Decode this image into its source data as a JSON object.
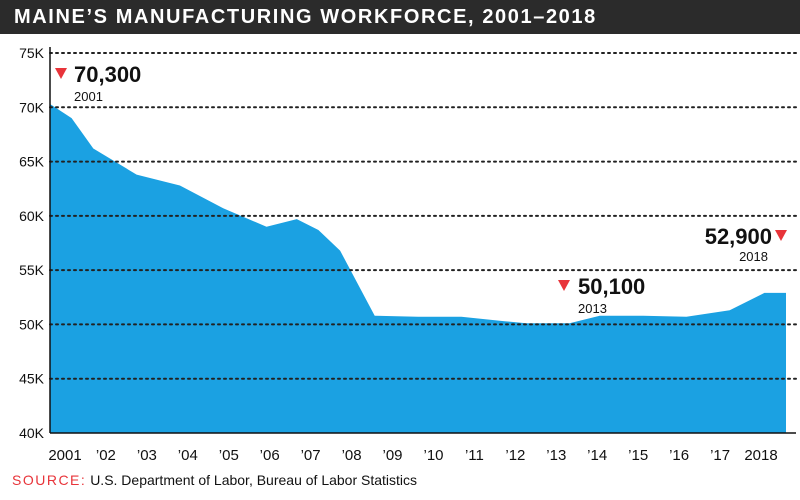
{
  "title": "MAINE’S MANUFACTURING WORKFORCE, 2001–2018",
  "source": {
    "label": "SOURCE:",
    "text": "U.S. Department of Labor, Bureau of Labor Statistics"
  },
  "colors": {
    "area": "#1ba1e2",
    "title_bar": "#2b2b2b",
    "marker": "#e8343a",
    "grid": "#222222",
    "text": "#111111"
  },
  "chart_data": {
    "type": "area",
    "title": "MAINE’S MANUFACTURING WORKFORCE, 2001–2018",
    "x_tick_labels": [
      "2001",
      "'02",
      "'03",
      "'04",
      "'05",
      "'06",
      "'07",
      "'08",
      "'09",
      "'10",
      "'11",
      "'12",
      "'13",
      "'14",
      "'15",
      "'16",
      "'17",
      "2018"
    ],
    "y_tick_labels": [
      "40K",
      "45K",
      "50K",
      "55K",
      "60K",
      "65K",
      "70K",
      "75K"
    ],
    "ylim": [
      40000,
      75000
    ],
    "grid": "dotted horizontal",
    "series": [
      {
        "values": [
          [
            2001.0,
            70300
          ],
          [
            2001.5,
            69000
          ],
          [
            2002.0,
            66200
          ],
          [
            2003.0,
            63800
          ],
          [
            2003.7,
            63100
          ],
          [
            2004.0,
            62800
          ],
          [
            2005.0,
            60700
          ],
          [
            2006.0,
            59000
          ],
          [
            2006.7,
            59700
          ],
          [
            2007.2,
            58700
          ],
          [
            2007.7,
            56800
          ],
          [
            2008.5,
            50800
          ],
          [
            2009.5,
            50700
          ],
          [
            2010.5,
            50700
          ],
          [
            2011.5,
            50300
          ],
          [
            2012.0,
            50100
          ],
          [
            2013.0,
            50100
          ],
          [
            2013.7,
            50800
          ],
          [
            2014.7,
            50800
          ],
          [
            2015.7,
            50700
          ],
          [
            2016.7,
            51300
          ],
          [
            2017.5,
            52900
          ]
        ]
      }
    ],
    "annotations": [
      {
        "value": "70,300",
        "year": "2001"
      },
      {
        "value": "50,100",
        "year": "2013"
      },
      {
        "value": "52,900",
        "year": "2018"
      }
    ]
  }
}
